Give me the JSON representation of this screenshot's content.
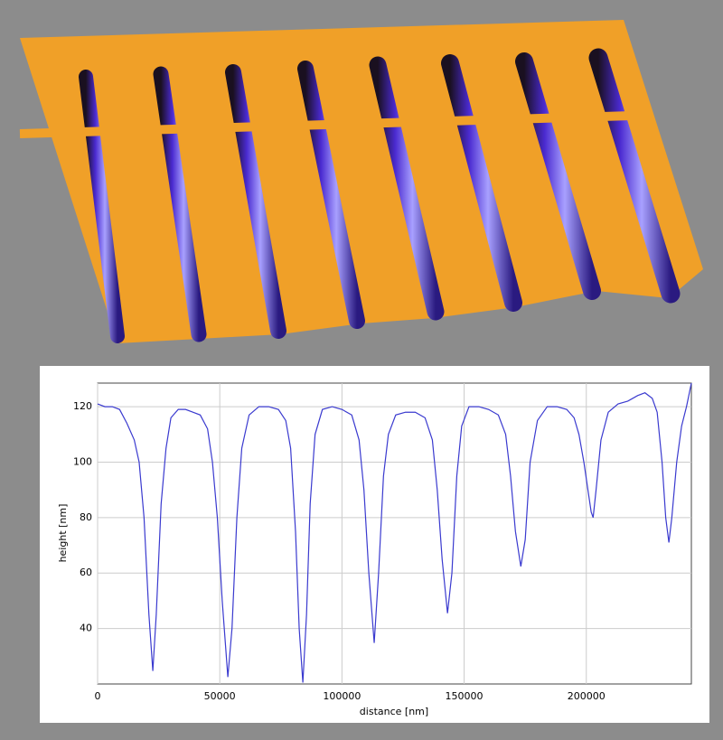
{
  "chart_data": {
    "type": "line",
    "xlabel": "distance [nm]",
    "ylabel": "height [nm]",
    "color": "#3a3acf",
    "grid": true,
    "xlim": [
      0,
      243000
    ],
    "ylim": [
      20,
      128.5
    ],
    "xticks": [
      0,
      50000,
      100000,
      150000,
      200000
    ],
    "yticks": [
      40,
      60,
      80,
      100,
      120
    ],
    "x": [
      0,
      3000,
      6000,
      9000,
      12000,
      15000,
      17000,
      19000,
      21000,
      22600,
      24000,
      26000,
      28000,
      30000,
      33000,
      36000,
      39000,
      42000,
      45000,
      47000,
      49000,
      51000,
      53300,
      55000,
      57000,
      59000,
      62000,
      66000,
      70000,
      74000,
      77000,
      79000,
      81000,
      82500,
      84000,
      85500,
      87000,
      89000,
      92000,
      96000,
      100000,
      104000,
      107000,
      109000,
      111000,
      113200,
      115000,
      117000,
      119000,
      122000,
      126000,
      130000,
      134000,
      137000,
      139000,
      141000,
      143200,
      145000,
      147000,
      149000,
      152000,
      156000,
      160000,
      164000,
      167000,
      169000,
      171000,
      173200,
      175000,
      177000,
      180000,
      184000,
      188000,
      192000,
      195000,
      197000,
      199000,
      201000,
      202000,
      202800,
      204000,
      206000,
      209000,
      213000,
      217000,
      221000,
      224000,
      227000,
      229000,
      231000,
      232500,
      233800,
      235000,
      237000,
      239000,
      241000,
      243000
    ],
    "values": [
      121,
      120,
      120,
      119,
      114,
      108,
      100,
      80,
      45,
      24.7,
      45,
      85,
      105,
      116,
      119,
      119,
      118,
      117,
      112,
      100,
      80,
      50,
      22.5,
      40,
      80,
      105,
      117,
      120,
      120,
      119,
      115,
      105,
      75,
      40,
      20.5,
      45,
      85,
      110,
      119,
      120,
      119,
      117,
      108,
      90,
      60,
      34.8,
      60,
      95,
      110,
      117,
      118,
      118,
      116,
      108,
      90,
      65,
      45.5,
      60,
      95,
      113,
      120,
      120,
      119,
      117,
      110,
      95,
      75,
      62.4,
      72,
      100,
      115,
      120,
      120,
      119,
      116,
      110,
      100,
      88,
      82,
      80,
      90,
      108,
      118,
      121,
      122,
      124,
      125,
      123,
      118,
      100,
      80,
      71,
      80,
      100,
      113,
      120,
      128.5
    ]
  }
}
